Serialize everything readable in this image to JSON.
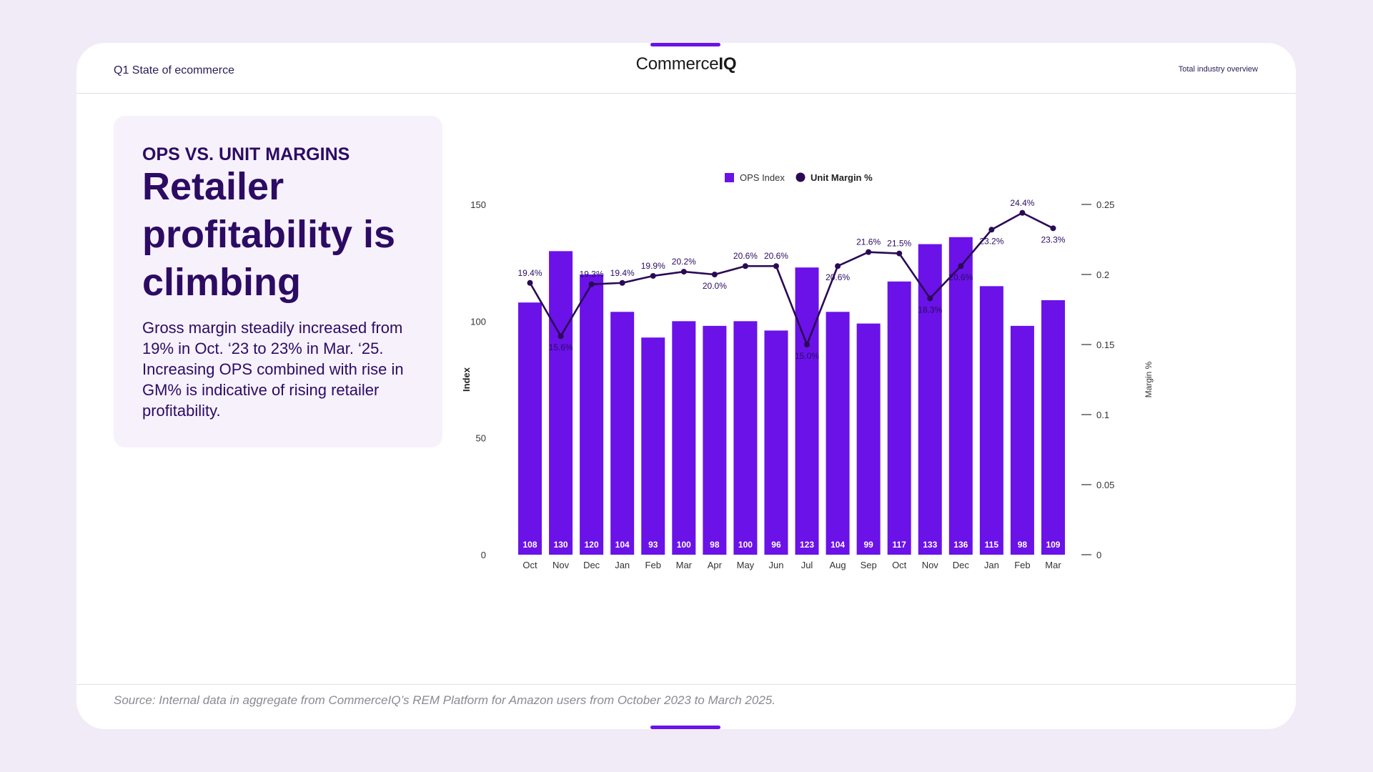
{
  "header": {
    "left_label": "Q1 State of ecommerce",
    "brand_light": "Commerce",
    "brand_bold": "IQ",
    "right_label": "Total industry overview"
  },
  "panel": {
    "kicker": "OPS VS. UNIT MARGINS",
    "headline": "Retailer profitability is climbing",
    "body": "Gross margin steadily increased from 19% in Oct. ‘23 to 23% in Mar. ‘25. Increasing OPS combined with rise in GM% is indicative of rising retailer profitability."
  },
  "footer": {
    "source": "Source: Internal data in aggregate from CommerceIQ’s REM Platform for Amazon users from October 2023 to March 2025."
  },
  "colors": {
    "bar": "#6a12e8",
    "line": "#2a0a55",
    "text_dark": "#2c0b63"
  },
  "chart_data": {
    "type": "bar",
    "categories": [
      "Oct",
      "Nov",
      "Dec",
      "Jan",
      "Feb",
      "Mar",
      "Apr",
      "May",
      "Jun",
      "Jul",
      "Aug",
      "Sep",
      "Oct",
      "Nov",
      "Dec",
      "Jan",
      "Feb",
      "Mar"
    ],
    "series": [
      {
        "name": "OPS Index",
        "type": "bar",
        "axis": "left",
        "values": [
          108,
          130,
          120,
          104,
          93,
          100,
          98,
          100,
          96,
          123,
          104,
          99,
          117,
          133,
          136,
          115,
          98,
          109
        ]
      },
      {
        "name": "Unit Margin %",
        "type": "line",
        "axis": "right",
        "values": [
          0.194,
          0.156,
          0.193,
          0.194,
          0.199,
          0.202,
          0.2,
          0.206,
          0.206,
          0.15,
          0.206,
          0.216,
          0.215,
          0.183,
          0.206,
          0.232,
          0.244,
          0.233
        ],
        "labels": [
          "19.4%",
          "15.6%",
          "19.3%",
          "19.4%",
          "19.9%",
          "20.2%",
          "20.0%",
          "20.6%",
          "20.6%",
          "15.0%",
          "20.6%",
          "21.6%",
          "21.5%",
          "18.3%",
          "20.6%",
          "23.2%",
          "24.4%",
          "23.3%"
        ]
      }
    ],
    "ylabel": "Index",
    "y2label": "Margin %",
    "ylim": [
      0,
      150
    ],
    "yticks": [
      "0",
      "50",
      "100",
      "150"
    ],
    "y2lim": [
      0,
      0.25
    ],
    "y2ticks": [
      "0",
      "0.05",
      "0.1",
      "0.15",
      "0.2",
      "0.25"
    ],
    "legend": "top-center",
    "grid": false
  }
}
